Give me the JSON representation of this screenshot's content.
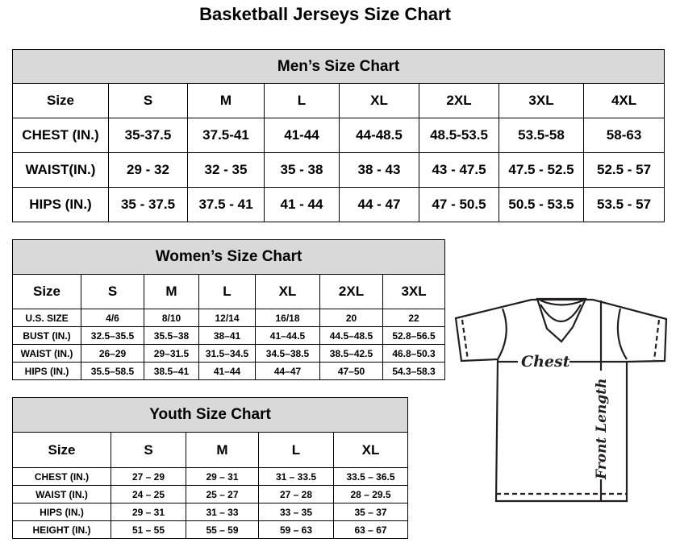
{
  "title": "Basketball Jerseys Size Chart",
  "men": {
    "heading": "Men’s Size Chart",
    "header": [
      "Size",
      "S",
      "M",
      "L",
      "XL",
      "2XL",
      "3XL",
      "4XL"
    ],
    "rows": [
      [
        "CHEST (IN.)",
        "35-37.5",
        "37.5-41",
        "41-44",
        "44-48.5",
        "48.5-53.5",
        "53.5-58",
        "58-63"
      ],
      [
        "WAIST(IN.)",
        "29 - 32",
        "32 - 35",
        "35 - 38",
        "38 - 43",
        "43 - 47.5",
        "47.5 - 52.5",
        "52.5 - 57"
      ],
      [
        "HIPS (IN.)",
        "35 - 37.5",
        "37.5 - 41",
        "41 - 44",
        "44 - 47",
        "47 - 50.5",
        "50.5 - 53.5",
        "53.5 - 57"
      ]
    ]
  },
  "women": {
    "heading": "Women’s Size Chart",
    "header": [
      "Size",
      "S",
      "M",
      "L",
      "XL",
      "2XL",
      "3XL"
    ],
    "rows": [
      [
        "U.S. SIZE",
        "4/6",
        "8/10",
        "12/14",
        "16/18",
        "20",
        "22"
      ],
      [
        "BUST (IN.)",
        "32.5–35.5",
        "35.5–38",
        "38–41",
        "41–44.5",
        "44.5–48.5",
        "52.8–56.5"
      ],
      [
        "WAIST (IN.)",
        "26–29",
        "29–31.5",
        "31.5–34.5",
        "34.5–38.5",
        "38.5–42.5",
        "46.8–50.3"
      ],
      [
        "HIPS (IN.)",
        "35.5–58.5",
        "38.5–41",
        "41–44",
        "44–47",
        "47–50",
        "54.3–58.3"
      ]
    ]
  },
  "youth": {
    "heading": "Youth Size Chart",
    "header": [
      "Size",
      "S",
      "M",
      "L",
      "XL"
    ],
    "rows": [
      [
        "CHEST (IN.)",
        "27 – 29",
        "29 – 31",
        "31 – 33.5",
        "33.5 – 36.5"
      ],
      [
        "WAIST (IN.)",
        "24 – 25",
        "25 – 27",
        "27 – 28",
        "28 – 29.5"
      ],
      [
        "HIPS (IN.)",
        "29 – 31",
        "31 – 33",
        "33 – 35",
        "35 – 37"
      ],
      [
        "HEIGHT (IN.)",
        "51 – 55",
        "55 – 59",
        "59 – 63",
        "63 – 67"
      ]
    ]
  },
  "diagram": {
    "chest_label": "Chest",
    "length_label": "Front Length"
  }
}
